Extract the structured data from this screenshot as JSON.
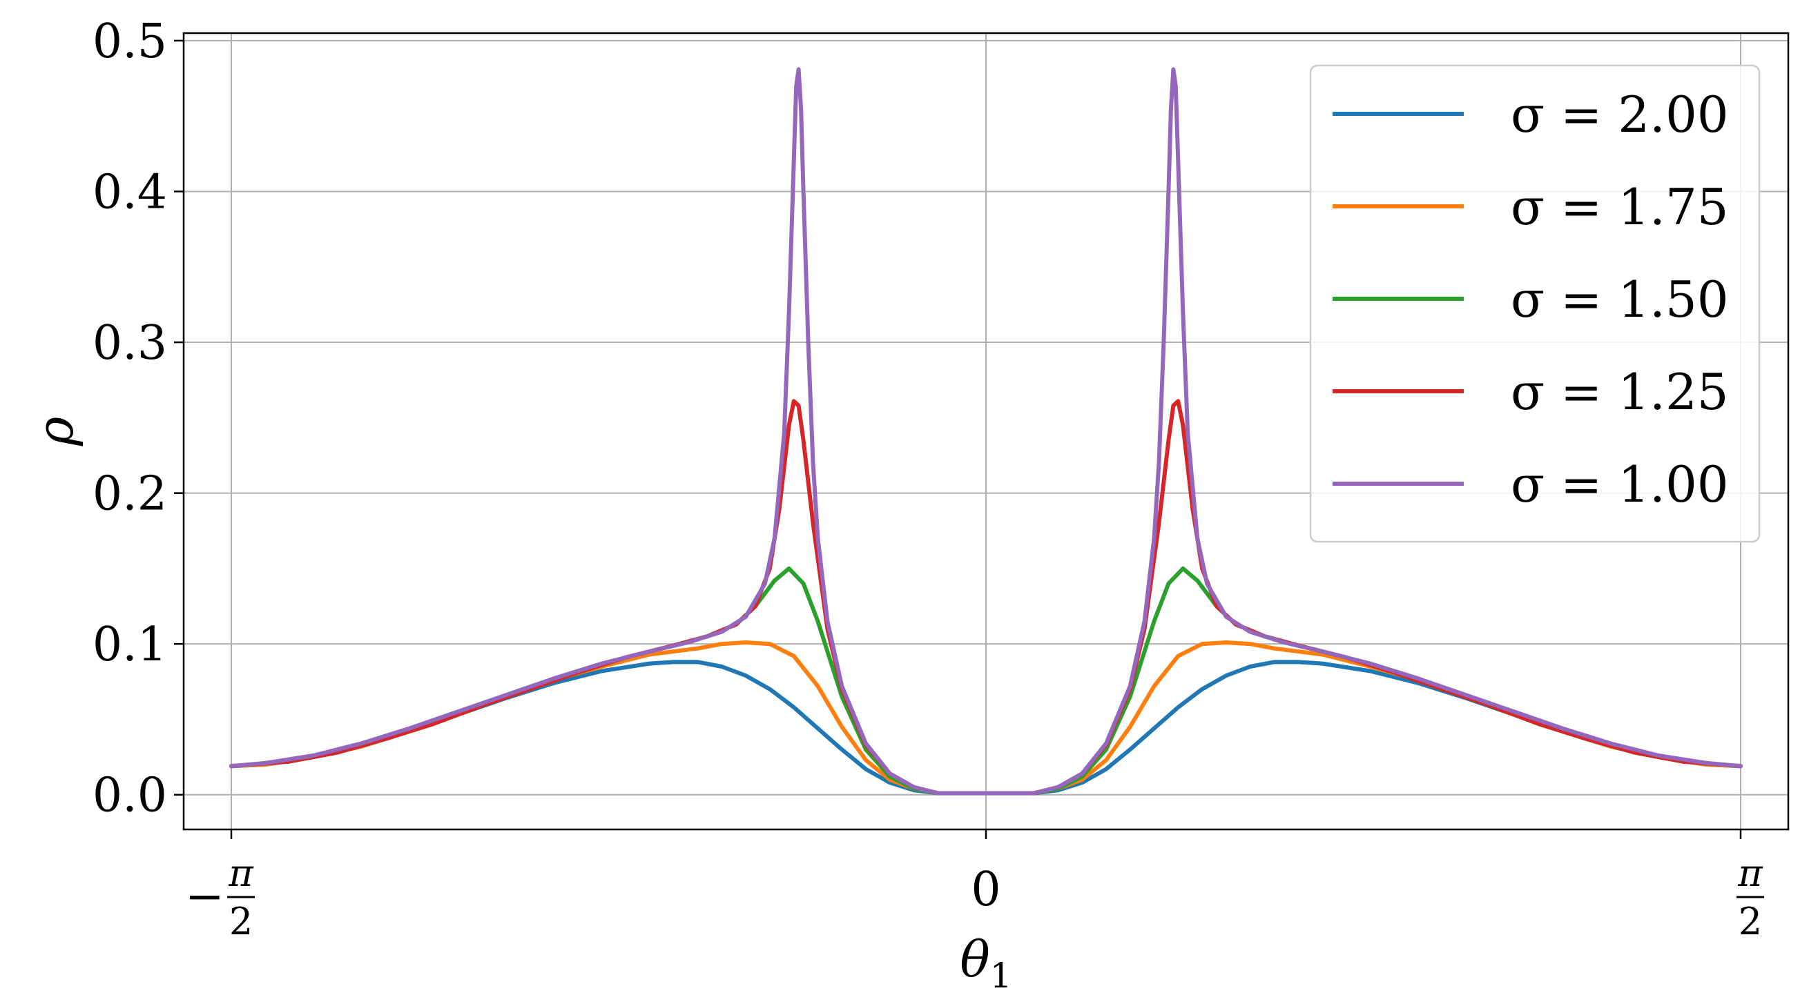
{
  "chart_data": {
    "type": "line",
    "xlabel": "θ",
    "xlabel_sub": "1",
    "ylabel": "ρ",
    "xlim": [
      -1.67,
      1.67
    ],
    "ylim": [
      -0.023,
      0.505
    ],
    "grid": true,
    "legend_position": "top-right",
    "y_ticks": [
      {
        "value": 0.0,
        "label": "0.0"
      },
      {
        "value": 0.1,
        "label": "0.1"
      },
      {
        "value": 0.2,
        "label": "0.2"
      },
      {
        "value": 0.3,
        "label": "0.3"
      },
      {
        "value": 0.4,
        "label": "0.4"
      },
      {
        "value": 0.5,
        "label": "0.5"
      }
    ],
    "x_ticks": [
      {
        "value": -1.5708,
        "sign": "−",
        "num": "π",
        "den": "2"
      },
      {
        "value": 0,
        "sign": "",
        "num": "0",
        "den": ""
      },
      {
        "value": 1.5708,
        "sign": "",
        "num": "π",
        "den": "2"
      }
    ],
    "series": [
      {
        "name": "σ = 2.00",
        "color": "#1f77b4",
        "points": [
          [
            0,
            0.001
          ],
          [
            0.1,
            0.001
          ],
          [
            0.15,
            0.003
          ],
          [
            0.2,
            0.008
          ],
          [
            0.25,
            0.017
          ],
          [
            0.3,
            0.03
          ],
          [
            0.35,
            0.044
          ],
          [
            0.4,
            0.058
          ],
          [
            0.45,
            0.07
          ],
          [
            0.5,
            0.079
          ],
          [
            0.55,
            0.085
          ],
          [
            0.6,
            0.088
          ],
          [
            0.65,
            0.088
          ],
          [
            0.7,
            0.087
          ],
          [
            0.8,
            0.082
          ],
          [
            0.9,
            0.074
          ],
          [
            1.0,
            0.064
          ],
          [
            1.1,
            0.053
          ],
          [
            1.2,
            0.042
          ],
          [
            1.3,
            0.032
          ],
          [
            1.4,
            0.025
          ],
          [
            1.5,
            0.02
          ],
          [
            1.5708,
            0.019
          ]
        ]
      },
      {
        "name": "σ = 1.75",
        "color": "#ff7f0e",
        "points": [
          [
            0,
            0.001
          ],
          [
            0.1,
            0.001
          ],
          [
            0.15,
            0.004
          ],
          [
            0.2,
            0.01
          ],
          [
            0.25,
            0.023
          ],
          [
            0.3,
            0.045
          ],
          [
            0.35,
            0.072
          ],
          [
            0.4,
            0.092
          ],
          [
            0.45,
            0.1
          ],
          [
            0.5,
            0.101
          ],
          [
            0.55,
            0.1
          ],
          [
            0.6,
            0.097
          ],
          [
            0.7,
            0.093
          ],
          [
            0.8,
            0.085
          ],
          [
            0.9,
            0.076
          ],
          [
            1.0,
            0.065
          ],
          [
            1.1,
            0.053
          ],
          [
            1.2,
            0.042
          ],
          [
            1.3,
            0.032
          ],
          [
            1.4,
            0.025
          ],
          [
            1.5,
            0.02
          ],
          [
            1.5708,
            0.019
          ]
        ]
      },
      {
        "name": "σ = 1.50",
        "color": "#2ca02c",
        "points": [
          [
            0,
            0.001
          ],
          [
            0.1,
            0.001
          ],
          [
            0.15,
            0.004
          ],
          [
            0.2,
            0.012
          ],
          [
            0.25,
            0.03
          ],
          [
            0.3,
            0.065
          ],
          [
            0.35,
            0.115
          ],
          [
            0.38,
            0.14
          ],
          [
            0.41,
            0.15
          ],
          [
            0.44,
            0.142
          ],
          [
            0.48,
            0.125
          ],
          [
            0.52,
            0.113
          ],
          [
            0.58,
            0.105
          ],
          [
            0.65,
            0.099
          ],
          [
            0.75,
            0.091
          ],
          [
            0.85,
            0.081
          ],
          [
            0.95,
            0.07
          ],
          [
            1.05,
            0.059
          ],
          [
            1.15,
            0.047
          ],
          [
            1.25,
            0.037
          ],
          [
            1.35,
            0.028
          ],
          [
            1.45,
            0.022
          ],
          [
            1.5708,
            0.019
          ]
        ]
      },
      {
        "name": "σ = 1.25",
        "color": "#d62728",
        "points": [
          [
            0,
            0.001
          ],
          [
            0.1,
            0.001
          ],
          [
            0.15,
            0.005
          ],
          [
            0.2,
            0.014
          ],
          [
            0.25,
            0.033
          ],
          [
            0.3,
            0.07
          ],
          [
            0.33,
            0.11
          ],
          [
            0.36,
            0.18
          ],
          [
            0.38,
            0.235
          ],
          [
            0.39,
            0.258
          ],
          [
            0.4,
            0.261
          ],
          [
            0.41,
            0.245
          ],
          [
            0.43,
            0.19
          ],
          [
            0.45,
            0.15
          ],
          [
            0.48,
            0.125
          ],
          [
            0.52,
            0.113
          ],
          [
            0.58,
            0.105
          ],
          [
            0.65,
            0.099
          ],
          [
            0.75,
            0.091
          ],
          [
            0.85,
            0.081
          ],
          [
            0.95,
            0.07
          ],
          [
            1.05,
            0.059
          ],
          [
            1.15,
            0.047
          ],
          [
            1.25,
            0.037
          ],
          [
            1.35,
            0.028
          ],
          [
            1.45,
            0.022
          ],
          [
            1.5708,
            0.019
          ]
        ]
      },
      {
        "name": "σ = 1.00",
        "color": "#9467bd",
        "points": [
          [
            0,
            0.001
          ],
          [
            0.1,
            0.001
          ],
          [
            0.15,
            0.005
          ],
          [
            0.2,
            0.014
          ],
          [
            0.25,
            0.034
          ],
          [
            0.3,
            0.072
          ],
          [
            0.33,
            0.115
          ],
          [
            0.35,
            0.17
          ],
          [
            0.36,
            0.22
          ],
          [
            0.37,
            0.3
          ],
          [
            0.38,
            0.4
          ],
          [
            0.385,
            0.455
          ],
          [
            0.39,
            0.481
          ],
          [
            0.395,
            0.47
          ],
          [
            0.4,
            0.42
          ],
          [
            0.41,
            0.32
          ],
          [
            0.42,
            0.24
          ],
          [
            0.44,
            0.17
          ],
          [
            0.46,
            0.14
          ],
          [
            0.5,
            0.118
          ],
          [
            0.55,
            0.108
          ],
          [
            0.62,
            0.101
          ],
          [
            0.7,
            0.095
          ],
          [
            0.8,
            0.087
          ],
          [
            0.9,
            0.077
          ],
          [
            1.0,
            0.066
          ],
          [
            1.1,
            0.055
          ],
          [
            1.2,
            0.044
          ],
          [
            1.3,
            0.034
          ],
          [
            1.4,
            0.026
          ],
          [
            1.5,
            0.021
          ],
          [
            1.5708,
            0.019
          ]
        ]
      }
    ]
  }
}
